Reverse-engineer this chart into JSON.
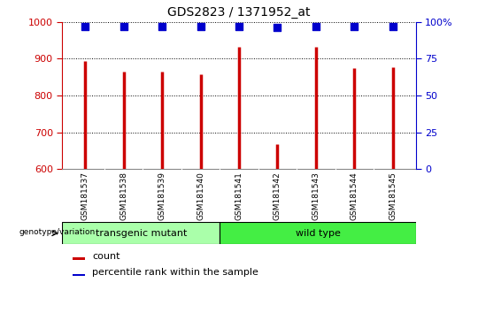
{
  "title": "GDS2823 / 1371952_at",
  "samples": [
    "GSM181537",
    "GSM181538",
    "GSM181539",
    "GSM181540",
    "GSM181541",
    "GSM181542",
    "GSM181543",
    "GSM181544",
    "GSM181545"
  ],
  "counts": [
    893,
    866,
    866,
    858,
    932,
    668,
    932,
    874,
    878
  ],
  "percentiles": [
    97,
    97,
    97,
    97,
    97,
    96,
    97,
    97,
    97
  ],
  "ylim_left": [
    600,
    1000
  ],
  "ylim_right": [
    0,
    100
  ],
  "yticks_left": [
    600,
    700,
    800,
    900,
    1000
  ],
  "yticks_right": [
    0,
    25,
    50,
    75,
    100
  ],
  "ytick_labels_right": [
    "0",
    "25",
    "50",
    "75",
    "100%"
  ],
  "bar_color": "#cc0000",
  "dot_color": "#0000cc",
  "grid_color": "#000000",
  "transgenic_label": "transgenic mutant",
  "wildtype_label": "wild type",
  "transgenic_count": 4,
  "wildtype_count": 5,
  "group_color_transgenic": "#aaffaa",
  "group_color_wildtype": "#44ee44",
  "xticklabel_color": "#000000",
  "left_axis_color": "#cc0000",
  "right_axis_color": "#0000cc",
  "genotype_label": "genotype/variation",
  "legend_count_label": "count",
  "legend_percentile_label": "percentile rank within the sample",
  "line_width": 2.5,
  "dot_size": 40,
  "bg_gray": "#cccccc"
}
